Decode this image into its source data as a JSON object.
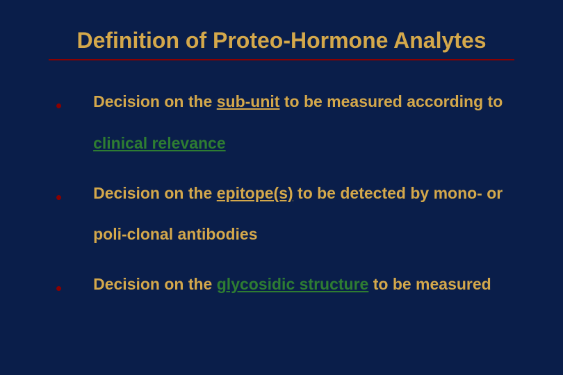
{
  "slide": {
    "background_color": "#0a1e4a",
    "title": {
      "text": "Definition of Proteo-Hormone Analytes",
      "color": "#d4a84b",
      "fontsize": 32,
      "fontweight": "bold"
    },
    "divider_color": "#8b0000",
    "bullets": [
      {
        "marker_color": "#8b0000",
        "text_color": "#d4a84b",
        "fontsize": 23,
        "parts": {
          "pre1": "Decision on the ",
          "u1": "sub-unit",
          "post1": " to be measured according to ",
          "green1": "clinical relevance",
          "tail1": ""
        }
      },
      {
        "marker_color": "#8b0000",
        "text_color": "#d4a84b",
        "fontsize": 23,
        "parts": {
          "pre2": "Decision on the ",
          "u2": "epitope(s)",
          "post2": " to be detected by mono- or poli-clonal antibodies"
        }
      },
      {
        "marker_color": "#8b0000",
        "text_color": "#d4a84b",
        "fontsize": 23,
        "parts": {
          "pre3": "Decision on the ",
          "green3": "glycosidic structure",
          "post3": " to be measured"
        }
      }
    ]
  }
}
